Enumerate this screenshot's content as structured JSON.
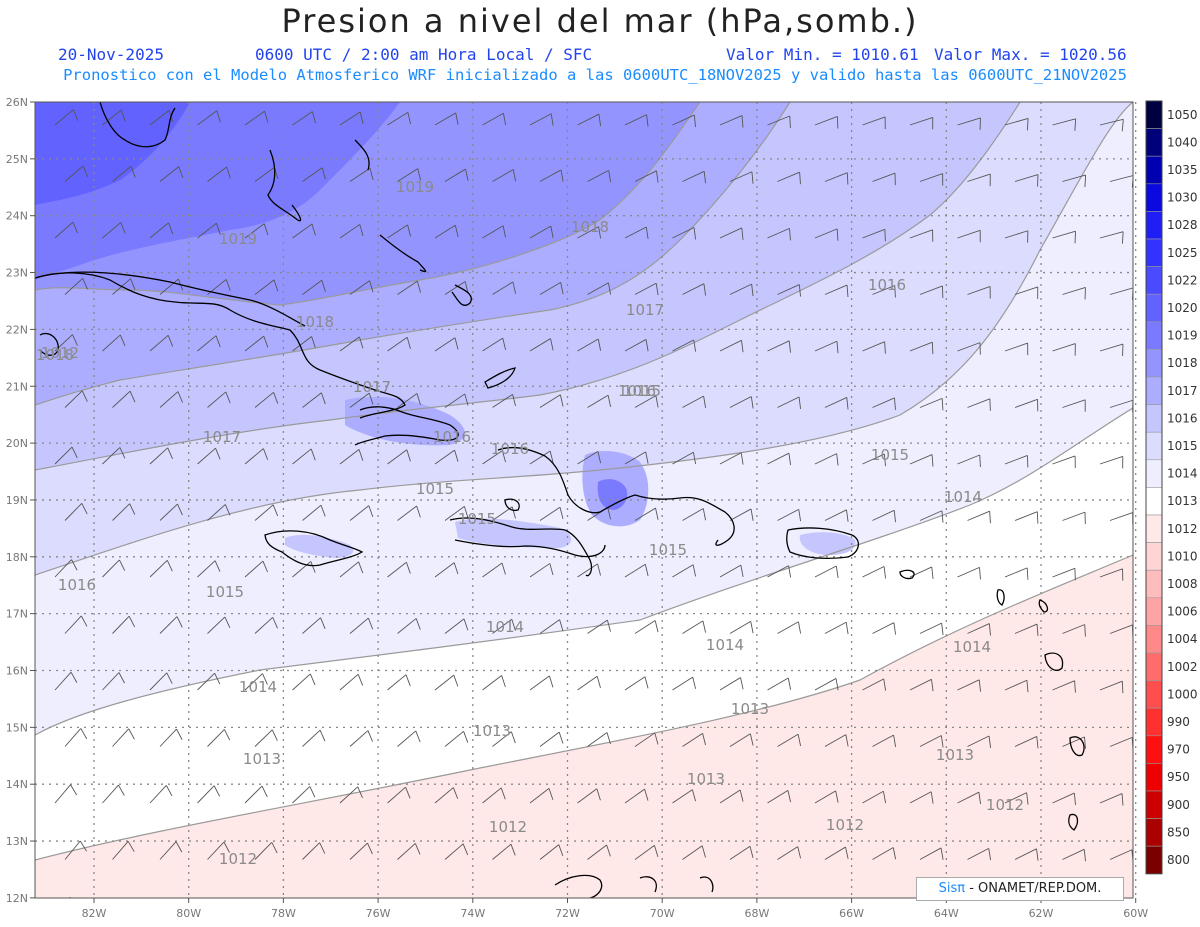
{
  "title": "Presion a nivel del mar (hPa,somb.)",
  "header": {
    "date": "20-Nov-2025",
    "time_info": "0600 UTC / 2:00 am Hora Local / SFC",
    "min_value": "Valor Min. = 1010.61",
    "max_value": "Valor Max. = 1020.56",
    "model_info": "Pronostico con el Modelo Atmosferico WRF inicializado a las 0600UTC_18NOV2025 y valido hasta las  0600UTC_21NOV2025"
  },
  "map": {
    "lon_labels": [
      "82W",
      "80W",
      "78W",
      "76W",
      "74W",
      "72W",
      "70W",
      "68W",
      "66W",
      "64W",
      "62W",
      "60W"
    ],
    "lat_labels": [
      "26N",
      "25N",
      "24N",
      "23N",
      "22N",
      "21N",
      "20N",
      "19N",
      "18N",
      "17N",
      "16N",
      "15N",
      "14N",
      "13N",
      "12N"
    ],
    "contour_labels": [
      "1019",
      "1019",
      "1018",
      "1018",
      "1018",
      "1017",
      "1017",
      "1017",
      "1016",
      "1016",
      "1016",
      "1016",
      "1016",
      "1015",
      "1015",
      "1015",
      "1015",
      "1015",
      "1015",
      "1014",
      "1014",
      "1014",
      "1014",
      "1014",
      "1013",
      "1013",
      "1013",
      "1013",
      "1013",
      "1012",
      "1012",
      "1012",
      "1012",
      "1012"
    ],
    "credit_brand": "Sis",
    "credit_pi": "π",
    "credit_text": " - ONAMET/REP.DOM."
  },
  "colorbar": {
    "levels": [
      "1050",
      "1040",
      "1035",
      "1030",
      "1028",
      "1025",
      "1022",
      "1020",
      "1019",
      "1018",
      "1017",
      "1016",
      "1015",
      "1014",
      "1013",
      "1012",
      "1010",
      "1008",
      "1006",
      "1004",
      "1002",
      "1000",
      "990",
      "970",
      "950",
      "900",
      "850",
      "800"
    ],
    "colors": [
      "#000040",
      "#00007a",
      "#0000b0",
      "#0a0ae0",
      "#1f1ff5",
      "#3333ff",
      "#4a4aff",
      "#6262ff",
      "#7a7aff",
      "#9494ff",
      "#adadff",
      "#c6c6ff",
      "#dcdcff",
      "#eeeeff",
      "#ffffff",
      "#ffe8e8",
      "#ffd4d4",
      "#ffbcbc",
      "#ffa4a4",
      "#ff8888",
      "#ff6c6c",
      "#ff4e4e",
      "#ff3030",
      "#ff1010",
      "#ee0000",
      "#cc0000",
      "#aa0000",
      "#7a0000"
    ]
  }
}
